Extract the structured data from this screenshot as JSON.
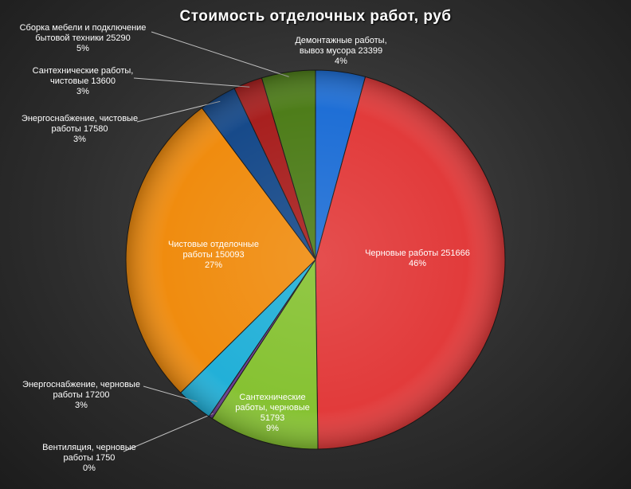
{
  "chart_data": {
    "type": "pie",
    "title": "Стоимость отделочных работ, руб",
    "slices": [
      {
        "label_lines": [
          "Демонтажные работы,",
          "вывоз мусора 23399",
          "4%"
        ],
        "value": 23399,
        "percent": "4%",
        "color": "#1f6fd6"
      },
      {
        "label_lines": [
          "Черновые работы 251666",
          "46%"
        ],
        "value": 251666,
        "percent": "46%",
        "color": "#e23b3b"
      },
      {
        "label_lines": [
          "Сантехнические",
          "работы, черновые",
          "51793",
          "9%"
        ],
        "value": 51793,
        "percent": "9%",
        "color": "#86c232"
      },
      {
        "label_lines": [
          "Вентиляция, черновые",
          "работы 1750",
          "0%"
        ],
        "value": 1750,
        "percent": "0%",
        "color": "#6a3c8f"
      },
      {
        "label_lines": [
          "Энергоснабжение, черновые",
          "работы 17200",
          "3%"
        ],
        "value": 17200,
        "percent": "3%",
        "color": "#22b0d8"
      },
      {
        "label_lines": [
          "Чистовые отделочные",
          "работы 150093",
          "27%"
        ],
        "value": 150093,
        "percent": "27%",
        "color": "#f08c0f"
      },
      {
        "label_lines": [
          "Энергоснабжение, чистовые",
          "работы 17580",
          "3%"
        ],
        "value": 17580,
        "percent": "3%",
        "color": "#174a8a"
      },
      {
        "label_lines": [
          "Сантехнические работы,",
          "чистовые 13600",
          "3%"
        ],
        "value": 13600,
        "percent": "3%",
        "color": "#a8201f"
      },
      {
        "label_lines": [
          "Сборка мебели и подключение",
          "бытовой техники 25290",
          "5%"
        ],
        "value": 25290,
        "percent": "5%",
        "color": "#4e7d1a"
      }
    ]
  }
}
